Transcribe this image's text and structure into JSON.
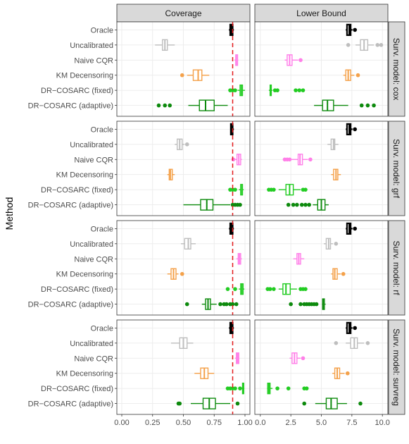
{
  "chart_data": {
    "type": "boxplot",
    "ylabel": "Method",
    "xlabel": "",
    "columns": [
      {
        "name": "Coverage",
        "xlim": [
          -0.04,
          1.04
        ],
        "ticks": [
          "0.00",
          "0.25",
          "0.50",
          "0.75",
          "1.00"
        ],
        "ref_line": 0.9
      },
      {
        "name": "Lower Bound",
        "xlim": [
          -0.45,
          10.45
        ],
        "ticks": [
          "0.0",
          "2.5",
          "5.0",
          "7.5",
          "10.0"
        ]
      }
    ],
    "methods": [
      "Oracle",
      "Uncalibrated",
      "Naive CQR",
      "KM Decensoring",
      "DR−COSARC (fixed)",
      "DR−COSARC (adaptive)"
    ],
    "colors": {
      "Oracle": "#000000",
      "Uncalibrated": "#bebebe",
      "Naive CQR": "#ff7fe8",
      "KM Decensoring": "#f4a14a",
      "DR−COSARC (fixed)": "#22cc22",
      "DR−COSARC (adaptive)": "#0d8a0d"
    },
    "rows": [
      {
        "label": "Surv. model: cox",
        "coverage": [
          {
            "method": "Oracle",
            "lo": 0.87,
            "q1": 0.88,
            "med": 0.89,
            "q3": 0.9,
            "hi": 0.91,
            "out": []
          },
          {
            "method": "Uncalibrated",
            "lo": 0.27,
            "q1": 0.33,
            "med": 0.35,
            "q3": 0.37,
            "hi": 0.43,
            "out": []
          },
          {
            "method": "Naive CQR",
            "lo": 0.915,
            "q1": 0.925,
            "med": 0.93,
            "q3": 0.94,
            "hi": 0.945,
            "out": []
          },
          {
            "method": "KM Decensoring",
            "lo": 0.53,
            "q1": 0.58,
            "med": 0.62,
            "q3": 0.65,
            "hi": 0.71,
            "out": [
              0.49
            ]
          },
          {
            "method": "DR−COSARC (fixed)",
            "lo": 0.94,
            "q1": 0.96,
            "med": 0.97,
            "q3": 0.98,
            "hi": 1.0,
            "out": [
              0.88,
              0.9,
              0.92
            ]
          },
          {
            "method": "DR−COSARC (adaptive)",
            "lo": 0.54,
            "q1": 0.63,
            "med": 0.68,
            "q3": 0.75,
            "hi": 0.86,
            "out": [
              0.3,
              0.35,
              0.39
            ]
          }
        ],
        "lower_bound": [
          {
            "method": "Oracle",
            "lo": 7.0,
            "q1": 7.1,
            "med": 7.3,
            "q3": 7.4,
            "hi": 7.55,
            "out": [
              7.75
            ]
          },
          {
            "method": "Uncalibrated",
            "lo": 7.8,
            "q1": 8.2,
            "med": 8.5,
            "q3": 8.8,
            "hi": 9.3,
            "out": [
              7.2,
              9.6,
              9.9
            ]
          },
          {
            "method": "Naive CQR",
            "lo": 2.0,
            "q1": 2.2,
            "med": 2.4,
            "q3": 2.6,
            "hi": 3.1,
            "out": [
              3.3
            ]
          },
          {
            "method": "KM Decensoring",
            "lo": 6.8,
            "q1": 7.0,
            "med": 7.2,
            "q3": 7.4,
            "hi": 7.7,
            "out": [
              8.0
            ]
          },
          {
            "method": "DR−COSARC (fixed)",
            "lo": 0.7,
            "q1": 0.8,
            "med": 0.85,
            "q3": 0.9,
            "hi": 1.0,
            "out": [
              1.2,
              1.4,
              2.9,
              3.2,
              3.5
            ]
          },
          {
            "method": "DR−COSARC (adaptive)",
            "lo": 4.4,
            "q1": 5.1,
            "med": 5.5,
            "q3": 6.0,
            "hi": 7.2,
            "out": [
              8.3,
              8.8,
              9.3
            ]
          }
        ]
      },
      {
        "label": "Surv. model: grf",
        "coverage": [
          {
            "method": "Oracle",
            "lo": 0.88,
            "q1": 0.885,
            "med": 0.89,
            "q3": 0.9,
            "hi": 0.91,
            "out": []
          },
          {
            "method": "Uncalibrated",
            "lo": 0.43,
            "q1": 0.45,
            "med": 0.47,
            "q3": 0.49,
            "hi": 0.51,
            "out": [
              0.53
            ]
          },
          {
            "method": "Naive CQR",
            "lo": 0.92,
            "q1": 0.935,
            "med": 0.95,
            "q3": 0.965,
            "hi": 0.975,
            "out": [
              0.905
            ]
          },
          {
            "method": "KM Decensoring",
            "lo": 0.37,
            "q1": 0.385,
            "med": 0.395,
            "q3": 0.41,
            "hi": 0.43,
            "out": []
          },
          {
            "method": "DR−COSARC (fixed)",
            "lo": 0.95,
            "q1": 0.965,
            "med": 0.97,
            "q3": 0.98,
            "hi": 0.99,
            "out": [
              0.88,
              0.9,
              0.92
            ]
          },
          {
            "method": "DR−COSARC (adaptive)",
            "lo": 0.5,
            "q1": 0.64,
            "med": 0.69,
            "q3": 0.74,
            "hi": 0.88,
            "out": [
              0.9,
              0.92,
              0.94,
              0.96
            ]
          }
        ],
        "lower_bound": [
          {
            "method": "Oracle",
            "lo": 7.0,
            "q1": 7.1,
            "med": 7.3,
            "q3": 7.4,
            "hi": 7.55,
            "out": [
              7.75
            ]
          },
          {
            "method": "Uncalibrated",
            "lo": 5.5,
            "q1": 5.8,
            "med": 6.0,
            "q3": 6.1,
            "hi": 6.4,
            "out": []
          },
          {
            "method": "Naive CQR",
            "lo": 2.5,
            "q1": 3.1,
            "med": 3.25,
            "q3": 3.45,
            "hi": 3.9,
            "out": [
              2.0,
              2.2,
              2.4,
              4.1
            ]
          },
          {
            "method": "KM Decensoring",
            "lo": 5.8,
            "q1": 6.0,
            "med": 6.2,
            "q3": 6.35,
            "hi": 6.6,
            "out": []
          },
          {
            "method": "DR−COSARC (fixed)",
            "lo": 1.5,
            "q1": 2.1,
            "med": 2.4,
            "q3": 2.7,
            "hi": 3.3,
            "out": [
              0.7,
              0.9,
              1.1,
              3.5,
              3.7
            ]
          },
          {
            "method": "DR−COSARC (adaptive)",
            "lo": 4.3,
            "q1": 4.7,
            "med": 5.0,
            "q3": 5.3,
            "hi": 5.6,
            "out": [
              2.3,
              2.7,
              3.0,
              3.4,
              3.7,
              4.0
            ]
          }
        ]
      },
      {
        "label": "Surv. model: rf",
        "coverage": [
          {
            "method": "Oracle",
            "lo": 0.87,
            "q1": 0.88,
            "med": 0.89,
            "q3": 0.9,
            "hi": 0.91,
            "out": []
          },
          {
            "method": "Uncalibrated",
            "lo": 0.48,
            "q1": 0.51,
            "med": 0.54,
            "q3": 0.56,
            "hi": 0.6,
            "out": []
          },
          {
            "method": "Naive CQR",
            "lo": 0.93,
            "q1": 0.945,
            "med": 0.955,
            "q3": 0.965,
            "hi": 0.975,
            "out": []
          },
          {
            "method": "KM Decensoring",
            "lo": 0.37,
            "q1": 0.4,
            "med": 0.42,
            "q3": 0.44,
            "hi": 0.46,
            "out": [
              0.49
            ]
          },
          {
            "method": "DR−COSARC (fixed)",
            "lo": 0.95,
            "q1": 0.965,
            "med": 0.975,
            "q3": 0.985,
            "hi": 0.995,
            "out": [
              0.86,
              0.92
            ]
          },
          {
            "method": "DR−COSARC (adaptive)",
            "lo": 0.65,
            "q1": 0.68,
            "med": 0.7,
            "q3": 0.72,
            "hi": 0.77,
            "out": [
              0.53,
              0.8,
              0.83,
              0.85,
              0.88,
              0.9,
              0.93
            ]
          }
        ],
        "lower_bound": [
          {
            "method": "Oracle",
            "lo": 7.0,
            "q1": 7.1,
            "med": 7.3,
            "q3": 7.4,
            "hi": 7.55,
            "out": [
              7.75
            ]
          },
          {
            "method": "Uncalibrated",
            "lo": 5.2,
            "q1": 5.4,
            "med": 5.6,
            "q3": 5.75,
            "hi": 5.95,
            "out": [
              6.2
            ]
          },
          {
            "method": "Naive CQR",
            "lo": 2.7,
            "q1": 3.0,
            "med": 3.15,
            "q3": 3.3,
            "hi": 3.6,
            "out": []
          },
          {
            "method": "KM Decensoring",
            "lo": 5.8,
            "q1": 5.95,
            "med": 6.1,
            "q3": 6.3,
            "hi": 6.6,
            "out": [
              6.8
            ]
          },
          {
            "method": "DR−COSARC (fixed)",
            "lo": 1.5,
            "q1": 1.85,
            "med": 2.1,
            "q3": 2.45,
            "hi": 3.0,
            "out": [
              0.6,
              0.8,
              1.1,
              3.3,
              3.5,
              3.7
            ]
          },
          {
            "method": "DR−COSARC (adaptive)",
            "lo": 5.05,
            "q1": 5.1,
            "med": 5.15,
            "q3": 5.25,
            "hi": 5.35,
            "out": [
              2.5,
              3.3,
              3.6,
              3.8,
              4.0,
              4.2,
              4.4,
              4.6
            ]
          }
        ]
      },
      {
        "label": "Surv. model: survreg",
        "coverage": [
          {
            "method": "Oracle",
            "lo": 0.87,
            "q1": 0.88,
            "med": 0.89,
            "q3": 0.9,
            "hi": 0.91,
            "out": []
          },
          {
            "method": "Uncalibrated",
            "lo": 0.4,
            "q1": 0.47,
            "med": 0.5,
            "q3": 0.53,
            "hi": 0.58,
            "out": []
          },
          {
            "method": "Naive CQR",
            "lo": 0.92,
            "q1": 0.93,
            "med": 0.94,
            "q3": 0.95,
            "hi": 0.955,
            "out": []
          },
          {
            "method": "KM Decensoring",
            "lo": 0.59,
            "q1": 0.64,
            "med": 0.67,
            "q3": 0.7,
            "hi": 0.75,
            "out": []
          },
          {
            "method": "DR−COSARC (fixed)",
            "lo": 0.97,
            "q1": 0.98,
            "med": 0.985,
            "q3": 0.99,
            "hi": 0.995,
            "out": [
              0.86,
              0.88,
              0.9,
              0.92,
              0.96
            ]
          },
          {
            "method": "DR−COSARC (adaptive)",
            "lo": 0.56,
            "q1": 0.66,
            "med": 0.71,
            "q3": 0.76,
            "hi": 0.88,
            "out": [
              0.46,
              0.47,
              0.94
            ]
          }
        ],
        "lower_bound": [
          {
            "method": "Oracle",
            "lo": 7.0,
            "q1": 7.1,
            "med": 7.3,
            "q3": 7.4,
            "hi": 7.55,
            "out": [
              7.75
            ]
          },
          {
            "method": "Uncalibrated",
            "lo": 7.0,
            "q1": 7.4,
            "med": 7.7,
            "q3": 7.95,
            "hi": 8.5,
            "out": [
              6.2,
              8.8
            ]
          },
          {
            "method": "Naive CQR",
            "lo": 2.4,
            "q1": 2.6,
            "med": 2.8,
            "q3": 3.0,
            "hi": 3.3,
            "out": [
              3.5
            ]
          },
          {
            "method": "KM Decensoring",
            "lo": 5.9,
            "q1": 6.1,
            "med": 6.3,
            "q3": 6.5,
            "hi": 6.9,
            "out": [
              7.15
            ]
          },
          {
            "method": "DR−COSARC (fixed)",
            "lo": 0.55,
            "q1": 0.6,
            "med": 0.7,
            "q3": 0.8,
            "hi": 1.0,
            "out": [
              1.4,
              2.3,
              3.6,
              3.8
            ]
          },
          {
            "method": "DR−COSARC (adaptive)",
            "lo": 4.5,
            "q1": 5.4,
            "med": 5.8,
            "q3": 6.3,
            "hi": 7.1,
            "out": [
              3.6,
              8.2
            ]
          }
        ]
      }
    ]
  }
}
